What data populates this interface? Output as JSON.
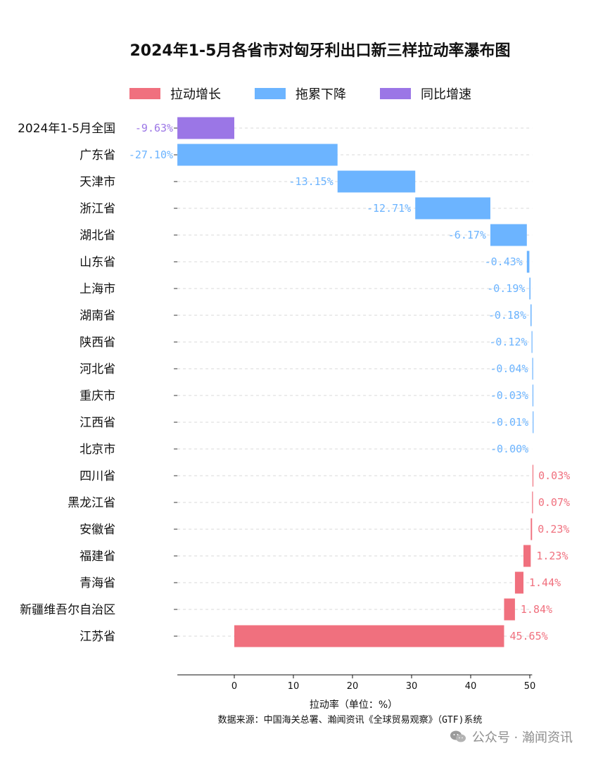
{
  "chart_data": {
    "type": "bar",
    "title": "2024年1-5月各省市对匈牙利出口新三样拉动率瀑布图",
    "xlabel": "拉动率（单位：%）",
    "xlim": [
      -9.63,
      50.4
    ],
    "xticks": [
      0,
      10,
      20,
      30,
      40,
      50
    ],
    "grid": "horizontal dashed",
    "legend_position": "top",
    "legend": [
      {
        "key": "pull_up",
        "label": "拉动增长",
        "color": "#f0707e"
      },
      {
        "key": "drag_down",
        "label": "拖累下降",
        "color": "#6cb4ff"
      },
      {
        "key": "yoy",
        "label": "同比增速",
        "color": "#9b76e6"
      }
    ],
    "categories": [
      "2024年1-5月全国",
      "广东省",
      "天津市",
      "浙江省",
      "湖北省",
      "山东省",
      "上海市",
      "湖南省",
      "陕西省",
      "河北省",
      "重庆市",
      "江西省",
      "北京市",
      "四川省",
      "黑龙江省",
      "安徽省",
      "福建省",
      "青海省",
      "新疆维吾尔自治区",
      "江苏省"
    ],
    "values": [
      -9.63,
      -27.1,
      -13.15,
      -12.71,
      -6.17,
      -0.43,
      -0.19,
      -0.18,
      -0.12,
      -0.04,
      -0.03,
      -0.01,
      -0.0,
      0.03,
      0.07,
      0.23,
      1.23,
      1.44,
      1.84,
      45.65
    ],
    "value_labels": [
      "-9.63%",
      "-27.10%",
      "-13.15%",
      "-12.71%",
      "-6.17%",
      "-0.43%",
      "-0.19%",
      "-0.18%",
      "-0.12%",
      "-0.04%",
      "-0.03%",
      "-0.01%",
      "-0.00%",
      "0.03%",
      "0.07%",
      "0.23%",
      "1.23%",
      "1.44%",
      "1.84%",
      "45.65%"
    ],
    "bar_type": [
      "yoy",
      "drag_down",
      "drag_down",
      "drag_down",
      "drag_down",
      "drag_down",
      "drag_down",
      "drag_down",
      "drag_down",
      "drag_down",
      "drag_down",
      "drag_down",
      "drag_down",
      "pull_up",
      "pull_up",
      "pull_up",
      "pull_up",
      "pull_up",
      "pull_up",
      "pull_up"
    ]
  },
  "source": "数据来源：中国海关总署、瀚闻资讯《全球贸易观察》（GTF)系统",
  "watermark": "公众号 · 瀚闻资讯",
  "watermark_icon": "wechat-icon"
}
